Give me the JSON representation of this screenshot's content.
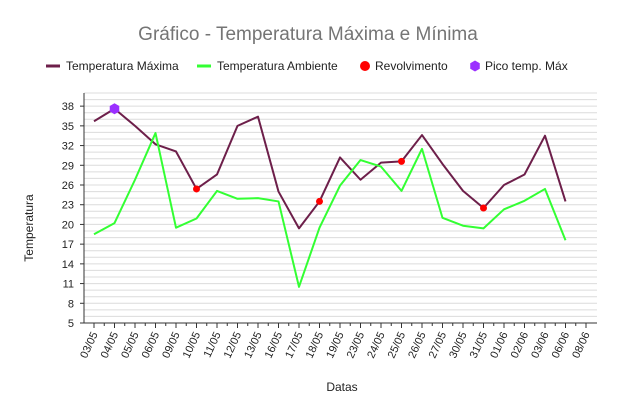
{
  "chart_data": {
    "type": "line",
    "title": "Gráfico - Temperatura Máxima e Mínima",
    "xlabel": "Datas",
    "ylabel": "Temperatura",
    "legend": [
      {
        "name": "Temperatura Máxima",
        "kind": "line",
        "color": "#6d1f4a"
      },
      {
        "name": "Temperatura Ambiente",
        "kind": "line",
        "color": "#33ff33"
      },
      {
        "name": "Revolvimento",
        "kind": "dot",
        "color": "#ff0000"
      },
      {
        "name": "Pico temp. Máx",
        "kind": "hexagon",
        "color": "#9b30ff"
      }
    ],
    "categories": [
      "03/05",
      "04/05",
      "05/05",
      "06/05",
      "09/05",
      "10/05",
      "11/05",
      "12/05",
      "13/05",
      "16/05",
      "17/05",
      "18/05",
      "19/05",
      "23/05",
      "24/05",
      "25/05",
      "26/05",
      "27/05",
      "30/05",
      "31/05",
      "01/06",
      "02/06",
      "03/06",
      "06/06",
      "08/06"
    ],
    "yticks": [
      5,
      8,
      11,
      14,
      17,
      20,
      23,
      26,
      29,
      32,
      35,
      38
    ],
    "ylim": [
      5,
      40
    ],
    "series": [
      {
        "name": "Temperatura Máxima",
        "color": "#6d1f4a",
        "values": [
          35.7,
          37.6,
          35.0,
          32.2,
          31.1,
          25.4,
          27.6,
          35.0,
          36.4,
          25.0,
          19.4,
          23.5,
          30.2,
          26.8,
          29.4,
          29.6,
          33.6,
          29.2,
          25.1,
          22.5,
          26.0,
          27.6,
          33.5,
          23.5,
          null
        ]
      },
      {
        "name": "Temperatura Ambiente",
        "color": "#33ff33",
        "values": [
          18.5,
          20.2,
          26.8,
          33.9,
          19.5,
          20.9,
          25.1,
          23.9,
          24.0,
          23.5,
          10.5,
          19.5,
          25.9,
          29.8,
          28.8,
          25.1,
          31.5,
          21.0,
          19.8,
          19.4,
          22.3,
          23.6,
          25.4,
          17.6,
          null
        ]
      }
    ],
    "markers": [
      {
        "name": "Revolvimento",
        "shape": "dot",
        "color": "#ff0000",
        "points": [
          {
            "x": "10/05",
            "y": 25.4
          },
          {
            "x": "18/05",
            "y": 23.5
          },
          {
            "x": "25/05",
            "y": 29.6
          },
          {
            "x": "31/05",
            "y": 22.5
          }
        ]
      },
      {
        "name": "Pico temp. Máx",
        "shape": "hexagon",
        "color": "#9b30ff",
        "points": [
          {
            "x": "04/05",
            "y": 37.6
          }
        ]
      }
    ]
  }
}
